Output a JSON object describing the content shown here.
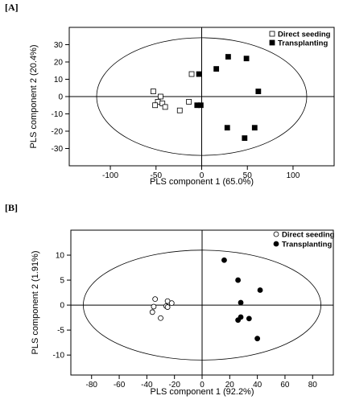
{
  "chart_data": [
    {
      "type": "scatter",
      "panel_label": "[A]",
      "title": "",
      "xlabel": "PLS component 1 (65.0%)",
      "ylabel": "PLS component 2 (20.4%)",
      "xlim": [
        -145,
        145
      ],
      "ylim": [
        -40,
        40
      ],
      "xticks": [
        -100,
        -50,
        0,
        50,
        100
      ],
      "yticks": [
        -30,
        -20,
        -10,
        0,
        10,
        20,
        30
      ],
      "grid": false,
      "legend": "top-right",
      "series": [
        {
          "name": "Direct seeding",
          "marker": "open-square",
          "points": [
            [
              -53,
              3
            ],
            [
              -45,
              0
            ],
            [
              -48,
              -3
            ],
            [
              -43,
              -4
            ],
            [
              -51,
              -5
            ],
            [
              -40,
              -6
            ],
            [
              -24,
              -8
            ],
            [
              -14,
              -3
            ],
            [
              -11,
              13
            ]
          ]
        },
        {
          "name": "Transplanting",
          "marker": "filled-square",
          "points": [
            [
              -3,
              13
            ],
            [
              16,
              16
            ],
            [
              29,
              23
            ],
            [
              49,
              22
            ],
            [
              62,
              3
            ],
            [
              -1,
              -5
            ],
            [
              -5,
              -5
            ],
            [
              28,
              -18
            ],
            [
              58,
              -18
            ],
            [
              47,
              -24
            ]
          ]
        }
      ]
    },
    {
      "type": "scatter",
      "panel_label": "[B]",
      "title": "",
      "xlabel": "PLS component 1 (92.2%)",
      "ylabel": "PLS component 2 (1.91%)",
      "xlim": [
        -95,
        95
      ],
      "ylim": [
        -14,
        15
      ],
      "xticks": [
        -80,
        -60,
        -40,
        -20,
        0,
        20,
        40,
        60,
        80
      ],
      "yticks": [
        -10,
        -5,
        0,
        5,
        10
      ],
      "grid": false,
      "legend": "top-right",
      "series": [
        {
          "name": "Direct seeding",
          "marker": "open-circle",
          "points": [
            [
              -34,
              1.2
            ],
            [
              -25,
              0.8
            ],
            [
              -22,
              0.4
            ],
            [
              -26,
              -0.2
            ],
            [
              -25,
              -0.4
            ],
            [
              -35,
              -0.3
            ],
            [
              -36,
              -1.4
            ],
            [
              -30,
              -2.6
            ]
          ]
        },
        {
          "name": "Transplanting",
          "marker": "filled-circle",
          "points": [
            [
              16,
              9
            ],
            [
              26,
              5
            ],
            [
              42,
              3
            ],
            [
              28,
              0.5
            ],
            [
              28,
              -2.4
            ],
            [
              26,
              -3
            ],
            [
              34,
              -2.7
            ],
            [
              40,
              -6.7
            ]
          ]
        }
      ]
    }
  ]
}
